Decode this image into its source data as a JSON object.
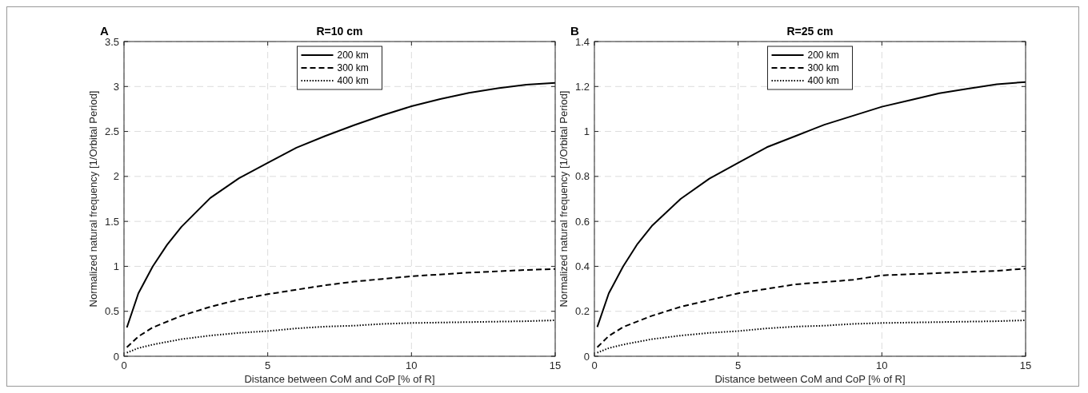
{
  "chart_data": [
    {
      "type": "line",
      "title": "R=10 cm",
      "xlabel": "Distance between CoM and CoP [% of R]",
      "ylabel": "Normalized natural frequency [1/Orbital Period]",
      "annotations": [
        "A"
      ],
      "xlim": [
        0,
        15
      ],
      "xticks": [
        0,
        5,
        10,
        15
      ],
      "ylim": [
        0,
        3.5
      ],
      "yticks": [
        0,
        0.5,
        1,
        1.5,
        2,
        2.5,
        3,
        3.5
      ],
      "grid": true,
      "legend": "top",
      "series": [
        {
          "name": "200 km",
          "color": "#000000",
          "line_style": "solid",
          "x": [
            0.1,
            0.5,
            1,
            1.5,
            2,
            3,
            4,
            5,
            6,
            7,
            8,
            9,
            10,
            11,
            12,
            13,
            14,
            15
          ],
          "values": [
            0.32,
            0.7,
            1.0,
            1.24,
            1.44,
            1.76,
            1.98,
            2.15,
            2.32,
            2.45,
            2.57,
            2.68,
            2.78,
            2.86,
            2.93,
            2.98,
            3.02,
            3.04
          ]
        },
        {
          "name": "300 km",
          "color": "#000000",
          "line_style": "dashed",
          "x": [
            0.1,
            0.5,
            1,
            2,
            3,
            4,
            5,
            6,
            7,
            8,
            9,
            10,
            12,
            14,
            15
          ],
          "values": [
            0.1,
            0.22,
            0.32,
            0.45,
            0.55,
            0.63,
            0.69,
            0.74,
            0.79,
            0.83,
            0.86,
            0.89,
            0.93,
            0.96,
            0.97
          ]
        },
        {
          "name": "400 km",
          "color": "#000000",
          "line_style": "dotted",
          "x": [
            0.1,
            0.5,
            1,
            2,
            3,
            4,
            5,
            6,
            7,
            8,
            9,
            10,
            12,
            14,
            15
          ],
          "values": [
            0.04,
            0.09,
            0.13,
            0.19,
            0.23,
            0.26,
            0.28,
            0.31,
            0.33,
            0.34,
            0.36,
            0.37,
            0.38,
            0.39,
            0.4
          ]
        }
      ]
    },
    {
      "type": "line",
      "title": "R=25 cm",
      "xlabel": "Distance between CoM and CoP [% of R]",
      "ylabel": "Normalized natural frequency [1/Orbital Period]",
      "annotations": [
        "B"
      ],
      "xlim": [
        0,
        15
      ],
      "xticks": [
        0,
        5,
        10,
        15
      ],
      "ylim": [
        0,
        1.4
      ],
      "yticks": [
        0,
        0.2,
        0.4,
        0.6,
        0.8,
        1,
        1.2,
        1.4
      ],
      "grid": true,
      "legend": "top",
      "series": [
        {
          "name": "200 km",
          "color": "#000000",
          "line_style": "solid",
          "x": [
            0.1,
            0.5,
            1,
            1.5,
            2,
            3,
            4,
            5,
            6,
            7,
            8,
            9,
            10,
            11,
            12,
            13,
            14,
            15
          ],
          "values": [
            0.13,
            0.28,
            0.4,
            0.5,
            0.58,
            0.7,
            0.79,
            0.86,
            0.93,
            0.98,
            1.03,
            1.07,
            1.11,
            1.14,
            1.17,
            1.19,
            1.21,
            1.22
          ]
        },
        {
          "name": "300 km",
          "color": "#000000",
          "line_style": "dashed",
          "x": [
            0.1,
            0.5,
            1,
            2,
            3,
            4,
            5,
            6,
            7,
            8,
            9,
            10,
            12,
            14,
            15
          ],
          "values": [
            0.04,
            0.09,
            0.13,
            0.18,
            0.22,
            0.25,
            0.28,
            0.3,
            0.32,
            0.33,
            0.34,
            0.36,
            0.37,
            0.38,
            0.39
          ]
        },
        {
          "name": "400 km",
          "color": "#000000",
          "line_style": "dotted",
          "x": [
            0.1,
            0.5,
            1,
            2,
            3,
            4,
            5,
            6,
            7,
            8,
            9,
            10,
            12,
            14,
            15
          ],
          "values": [
            0.016,
            0.036,
            0.052,
            0.076,
            0.092,
            0.104,
            0.112,
            0.124,
            0.132,
            0.136,
            0.144,
            0.148,
            0.152,
            0.156,
            0.16
          ]
        }
      ]
    }
  ]
}
